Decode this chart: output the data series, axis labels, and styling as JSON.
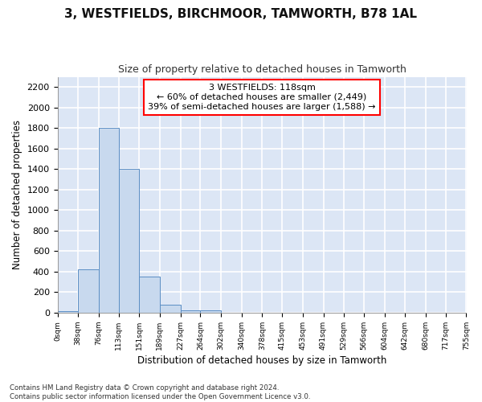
{
  "title": "3, WESTFIELDS, BIRCHMOOR, TAMWORTH, B78 1AL",
  "subtitle": "Size of property relative to detached houses in Tamworth",
  "xlabel": "Distribution of detached houses by size in Tamworth",
  "ylabel": "Number of detached properties",
  "bar_color": "#c8d9ee",
  "bar_edge_color": "#5b8ec4",
  "background_color": "#dce6f5",
  "fig_background_color": "#ffffff",
  "grid_color": "#ffffff",
  "annotation_text": "3 WESTFIELDS: 118sqm\n← 60% of detached houses are smaller (2,449)\n39% of semi-detached houses are larger (1,588) →",
  "bin_edges": [
    0,
    38,
    76,
    113,
    151,
    189,
    227,
    264,
    302,
    340,
    378,
    415,
    453,
    491,
    529,
    566,
    604,
    642,
    680,
    717,
    755
  ],
  "bin_labels": [
    "0sqm",
    "38sqm",
    "76sqm",
    "113sqm",
    "151sqm",
    "189sqm",
    "227sqm",
    "264sqm",
    "302sqm",
    "340sqm",
    "378sqm",
    "415sqm",
    "453sqm",
    "491sqm",
    "529sqm",
    "566sqm",
    "604sqm",
    "642sqm",
    "680sqm",
    "717sqm",
    "755sqm"
  ],
  "bar_heights": [
    15,
    420,
    1800,
    1400,
    355,
    75,
    25,
    20,
    0,
    0,
    0,
    0,
    0,
    0,
    0,
    0,
    0,
    0,
    0,
    0
  ],
  "ylim": [
    0,
    2300
  ],
  "yticks": [
    0,
    200,
    400,
    600,
    800,
    1000,
    1200,
    1400,
    1600,
    1800,
    2000,
    2200
  ],
  "footer_line1": "Contains HM Land Registry data © Crown copyright and database right 2024.",
  "footer_line2": "Contains public sector information licensed under the Open Government Licence v3.0."
}
